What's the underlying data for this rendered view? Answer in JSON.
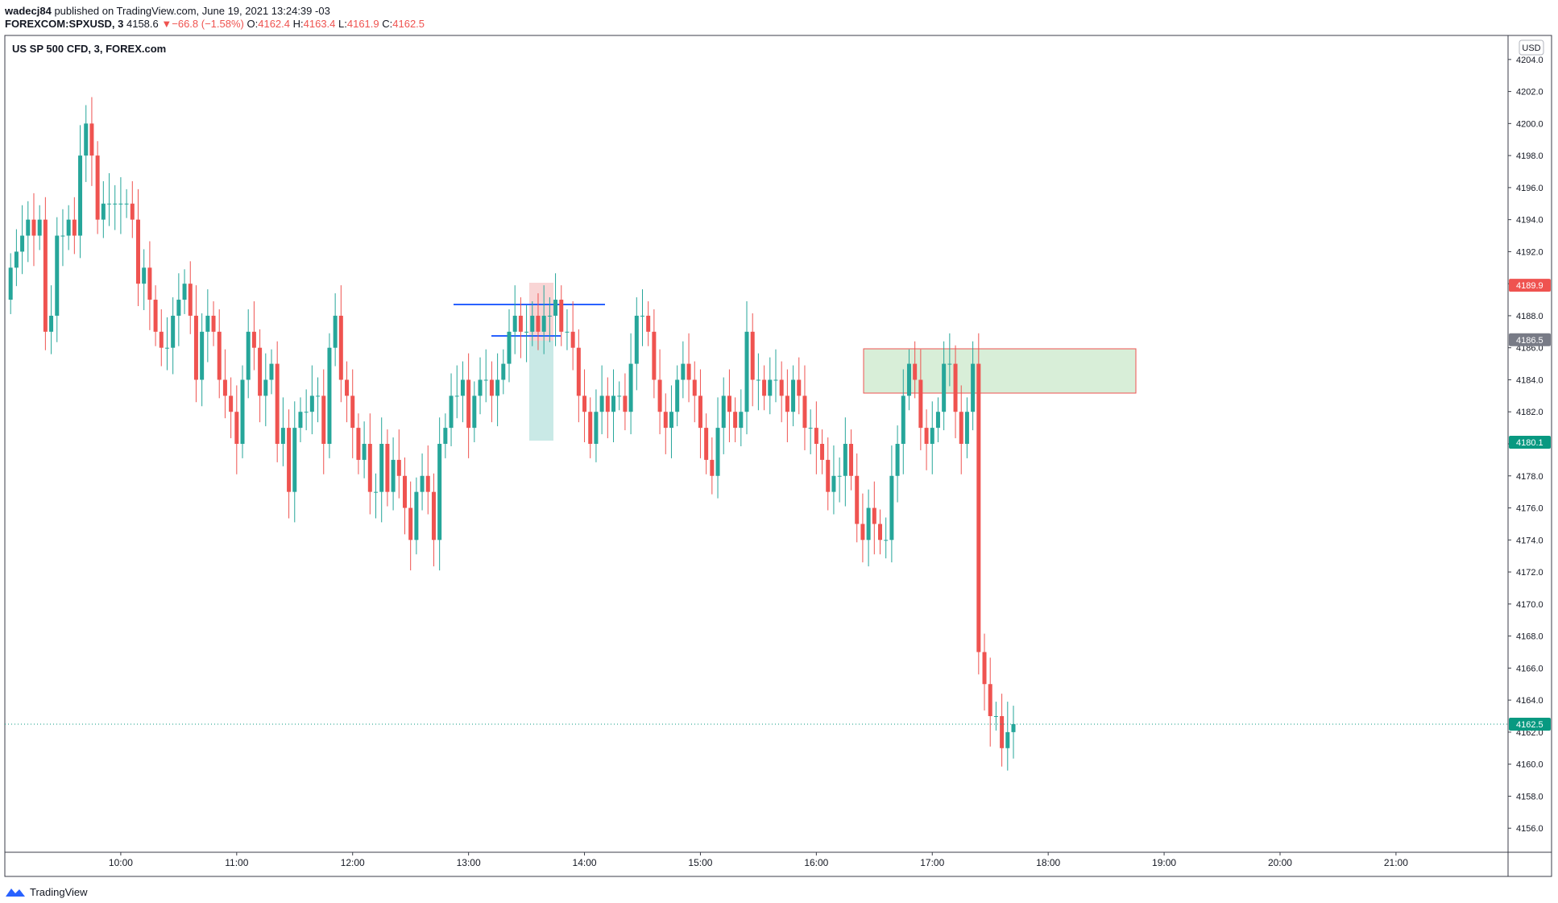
{
  "header": {
    "author": "wadecj84",
    "published_text": "published on TradingView.com, June 19, 2021 13:24:39 -03",
    "symbol": "FOREXCOM:SPXUSD, 3",
    "last": "4158.6",
    "change_arrow": "▼",
    "change": "−66.8 (−1.58%)",
    "o_label": "O:",
    "o": "4162.4",
    "h_label": "H:",
    "h": "4163.4",
    "l_label": "L:",
    "l": "4161.9",
    "c_label": "C:",
    "c": "4162.5"
  },
  "chart_title": "US SP 500 CFD, 3, FOREX.com",
  "currency": "USD",
  "footer": {
    "brand": "TradingView"
  },
  "colors": {
    "up": "#26a69a",
    "down": "#ef5350",
    "line": "#2962ff",
    "grid": "#e0e3eb"
  },
  "price_labels": [
    {
      "value": 4189.9,
      "text": "4189.9",
      "color": "#ef5350"
    },
    {
      "value": 4186.5,
      "text": "4186.5",
      "color": "#787b86"
    },
    {
      "value": 4180.1,
      "text": "4180.1",
      "color": "#089981"
    },
    {
      "value": 4162.5,
      "text": "4162.5",
      "color": "#089981"
    }
  ],
  "chart_data": {
    "type": "candlestick",
    "symbol": "FOREXCOM:SPXUSD",
    "interval": "3",
    "ylim": [
      4154.5,
      4205.5
    ],
    "y_ticks": [
      4156,
      4158,
      4160,
      4162,
      4164,
      4166,
      4168,
      4170,
      4172,
      4174,
      4176,
      4178,
      4180,
      4182,
      4184,
      4186,
      4188,
      4190,
      4192,
      4194,
      4196,
      4198,
      4200,
      4202,
      4204
    ],
    "x_range_min": [
      540,
      1318
    ],
    "x_ticks": [
      {
        "label": "10:00",
        "min": 600
      },
      {
        "label": "11:00",
        "min": 660
      },
      {
        "label": "12:00",
        "min": 720
      },
      {
        "label": "13:00",
        "min": 780
      },
      {
        "label": "14:00",
        "min": 840
      },
      {
        "label": "15:00",
        "min": 900
      },
      {
        "label": "16:00",
        "min": 960
      },
      {
        "label": "17:00",
        "min": 1020
      },
      {
        "label": "18:00",
        "min": 1080
      },
      {
        "label": "19:00",
        "min": 1140
      },
      {
        "label": "20:00",
        "min": 1200
      },
      {
        "label": "21:00",
        "min": 1260
      }
    ],
    "closes": [
      4191,
      4192,
      4193,
      4194,
      4193,
      4194,
      4187,
      4188,
      4193,
      4193,
      4194,
      4193,
      4198,
      4200,
      4198,
      4194,
      4195,
      4195,
      4195,
      4195,
      4195,
      4194,
      4190,
      4191,
      4189,
      4187,
      4186,
      4186,
      4188,
      4189,
      4190,
      4188,
      4184,
      4187,
      4188,
      4187,
      4184,
      4183,
      4182,
      4180,
      4184,
      4187,
      4186,
      4183,
      4184,
      4185,
      4180,
      4181,
      4177,
      4181,
      4182,
      4182,
      4183,
      4183,
      4180,
      4186,
      4188,
      4184,
      4183,
      4181,
      4179,
      4180,
      4177,
      4177,
      4180,
      4177,
      4179,
      4178,
      4176,
      4174,
      4177,
      4178,
      4177,
      4174,
      4180,
      4181,
      4183,
      4183,
      4184,
      4181,
      4183,
      4184,
      4184,
      4183,
      4184,
      4185,
      4187,
      4188,
      4187,
      4187,
      4188,
      4187,
      4188,
      4188,
      4189,
      4187,
      4187,
      4186,
      4183,
      4182,
      4180,
      4182,
      4183,
      4182,
      4183,
      4183,
      4182,
      4185,
      4188,
      4188,
      4187,
      4184,
      4182,
      4181,
      4182,
      4184,
      4185,
      4184,
      4183,
      4181,
      4179,
      4178,
      4181,
      4183,
      4182,
      4181,
      4182,
      4187,
      4184,
      4184,
      4183,
      4184,
      4184,
      4183,
      4182,
      4184,
      4183,
      4181,
      4181,
      4180,
      4179,
      4177,
      4178,
      4178,
      4180,
      4178,
      4175,
      4174,
      4176,
      4175,
      4174,
      4174,
      4178,
      4180,
      4183,
      4185,
      4184,
      4181,
      4180,
      4181,
      4182,
      4185,
      4185,
      4182,
      4180,
      4182,
      4185,
      4167,
      4165,
      4163,
      4163,
      4161,
      4162,
      4162.5
    ]
  }
}
